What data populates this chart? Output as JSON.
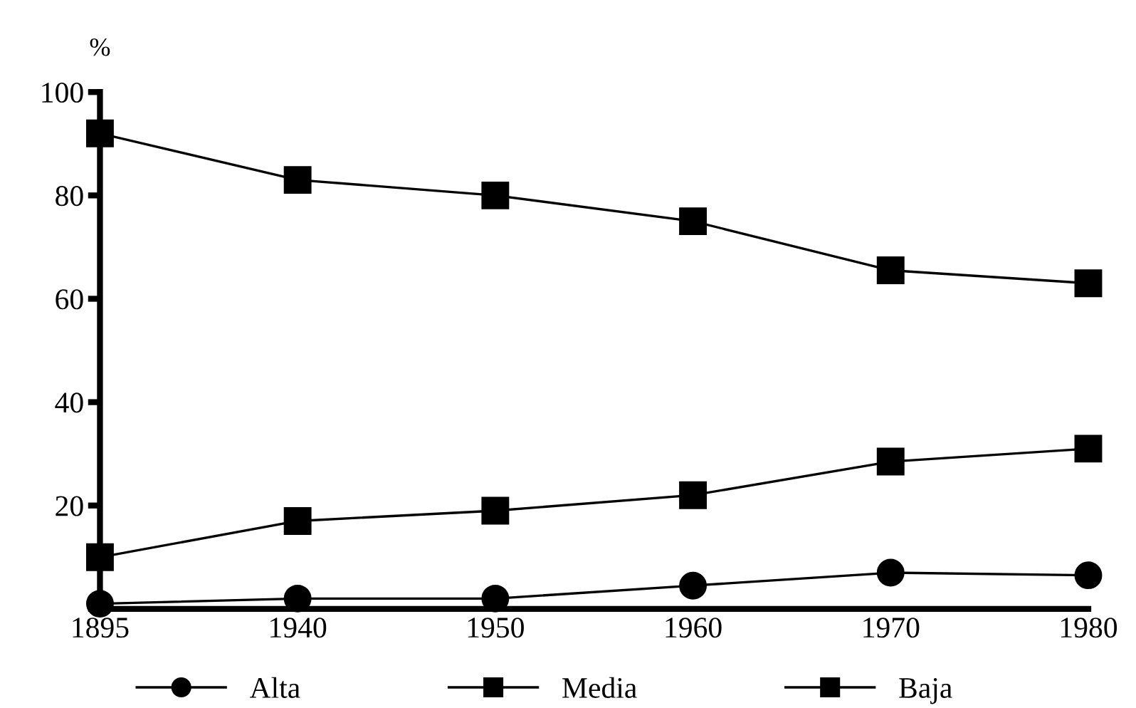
{
  "chart_data": {
    "type": "line",
    "ylabel": "%",
    "categories": [
      "1895",
      "1940",
      "1950",
      "1960",
      "1970",
      "1980"
    ],
    "series": [
      {
        "name": "Alta",
        "color": "#000000",
        "marker": "circle",
        "values": [
          1,
          2,
          2,
          4.5,
          7,
          6.5
        ]
      },
      {
        "name": "Media",
        "color": "#000000",
        "marker": "square",
        "values": [
          10,
          17,
          19,
          22,
          28.5,
          31
        ]
      },
      {
        "name": "Baja",
        "color": "#000000",
        "marker": "square",
        "values": [
          92,
          83,
          80,
          75,
          65.5,
          63
        ]
      }
    ],
    "ylim": [
      0,
      100
    ],
    "yticks": [
      {
        "value": 0,
        "label": null
      },
      20,
      40,
      60,
      80,
      100
    ],
    "grid": false,
    "legend": "bottom",
    "line_style": "solid"
  }
}
